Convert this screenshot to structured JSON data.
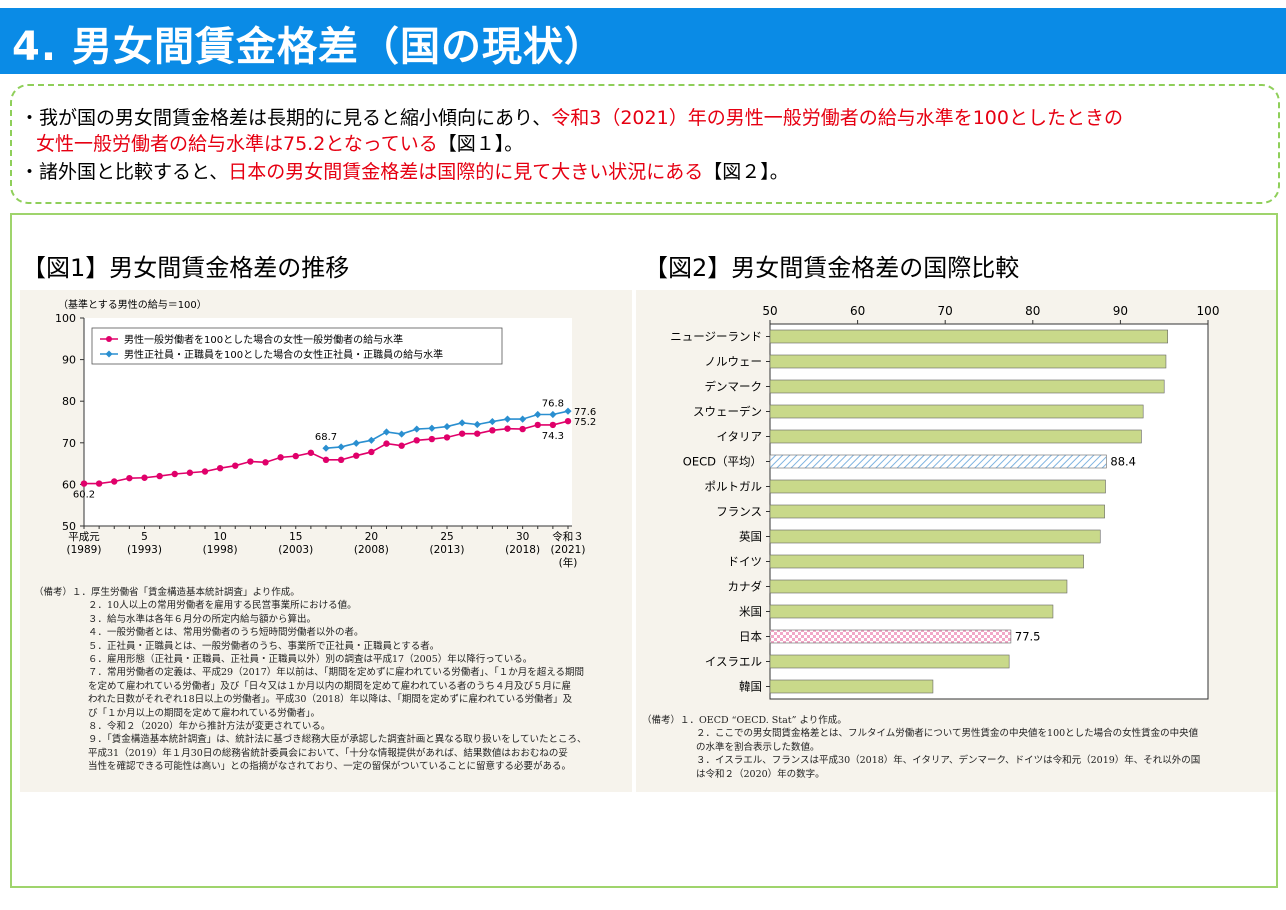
{
  "header": {
    "title": "4. 男女間賃金格差（国の現状）"
  },
  "summary": {
    "line1_a": "・我が国の男女間賃金格差は長期的に見ると縮小傾向にあり、",
    "line1_b": "令和3（2021）年の男性一般労働者の給与水準を100としたときの",
    "line2_a": "女性一般労働者の給与水準は75.2となっている",
    "line2_b": "【図１】。",
    "line3_a": "・諸外国と比較すると、",
    "line3_b": "日本の男女間賃金格差は国際的に見て大きい状況にある",
    "line3_c": "【図２】。"
  },
  "fig1": {
    "heading": "【図1】男女間賃金格差の推移",
    "notes": [
      "（備考）１．厚生労働省「賃金構造基本統計調査」より作成。",
      "２．10人以上の常用労働者を雇用する民営事業所における値。",
      "３．給与水準は各年６月分の所定内給与額から算出。",
      "４．一般労働者とは、常用労働者のうち短時間労働者以外の者。",
      "５．正社員・正職員とは、一般労働者のうち、事業所で正社員・正職員とする者。",
      "６．雇用形態（正社員・正職員、正社員・正職員以外）別の調査は平成17（2005）年以降行っている。",
      "７．常用労働者の定義は、平成29（2017）年以前は、「期間を定めずに雇われている労働者」、「１か月を超える期間",
      "を定めて雇われている労働者」及び「日々又は１か月以内の期間を定めて雇われている者のうち４月及び５月に雇",
      "われた日数がそれぞれ18日以上の労働者」。平成30（2018）年以降は、「期間を定めずに雇われている労働者」及",
      "び「１か月以上の期間を定めて雇われている労働者」。",
      "８．令和２（2020）年から推計方法が変更されている。",
      "９．「賃金構造基本統計調査」は、統計法に基づき総務大臣が承認した調査計画と異なる取り扱いをしていたところ、",
      "平成31（2019）年１月30日の総務省統計委員会において、「十分な情報提供があれば、結果数値はおおむねの妥",
      "当性を確認できる可能性は高い」との指摘がなされており、一定の留保がついていることに留意する必要がある。"
    ]
  },
  "fig2": {
    "heading": "【図2】男女間賃金格差の国際比較",
    "notes": [
      "（備考）１．OECD “OECD. Stat” より作成。",
      "２．ここでの男女間賃金格差とは、フルタイム労働者について男性賃金の中央値を100とした場合の女性賃金の中央値",
      "の水準を割合表示した数値。",
      "３．イスラエル、フランスは平成30（2018）年、イタリア、デンマーク、ドイツは令和元（2019）年、それ以外の国",
      "は令和２（2020）年の数字。"
    ]
  },
  "colors": {
    "title_bg": "#0a8be6",
    "accent_red": "#e60012",
    "series1": "#e0006a",
    "series2": "#2a8fd0",
    "bar": "#c9d98a",
    "bar_oecd": "#7fb3e0",
    "bar_japan": "#f2a8c8"
  },
  "chart_data": [
    {
      "type": "line",
      "ylabel": "（基準とする男性の給与＝100）",
      "ylim": [
        50,
        100
      ],
      "yticks": [
        50,
        60,
        70,
        80,
        90,
        100
      ],
      "xticks": [
        {
          "x": 1989,
          "l1": "平成元",
          "l2": "(1989)"
        },
        {
          "x": 1993,
          "l1": "5",
          "l2": "(1993)"
        },
        {
          "x": 1998,
          "l1": "10",
          "l2": "(1998)"
        },
        {
          "x": 2003,
          "l1": "15",
          "l2": "(2003)"
        },
        {
          "x": 2008,
          "l1": "20",
          "l2": "(2008)"
        },
        {
          "x": 2013,
          "l1": "25",
          "l2": "(2013)"
        },
        {
          "x": 2018,
          "l1": "30",
          "l2": "(2018)"
        },
        {
          "x": 2021,
          "l1": "令和３",
          "l2": "(2021)",
          "l3": "(年)"
        }
      ],
      "series": [
        {
          "name": "男性一般労働者を100とした場合の女性一般労働者の給与水準",
          "x": [
            1989,
            1990,
            1991,
            1992,
            1993,
            1994,
            1995,
            1996,
            1997,
            1998,
            1999,
            2000,
            2001,
            2002,
            2003,
            2004,
            2005,
            2006,
            2007,
            2008,
            2009,
            2010,
            2011,
            2012,
            2013,
            2014,
            2015,
            2016,
            2017,
            2018,
            2019,
            2020,
            2021
          ],
          "values": [
            60.2,
            60.2,
            60.7,
            61.5,
            61.6,
            62.0,
            62.5,
            62.8,
            63.1,
            63.9,
            64.5,
            65.5,
            65.3,
            66.5,
            66.8,
            67.6,
            65.9,
            65.9,
            66.9,
            67.8,
            69.8,
            69.3,
            70.6,
            70.9,
            71.3,
            72.2,
            72.2,
            73.0,
            73.4,
            73.3,
            74.3,
            74.3,
            75.2
          ]
        },
        {
          "name": "男性正社員・正職員を100とした場合の女性正社員・正職員の給与水準",
          "x": [
            2005,
            2006,
            2007,
            2008,
            2009,
            2010,
            2011,
            2012,
            2013,
            2014,
            2015,
            2016,
            2017,
            2018,
            2019,
            2020,
            2021
          ],
          "values": [
            68.7,
            69.0,
            69.9,
            70.6,
            72.6,
            72.1,
            73.3,
            73.5,
            73.9,
            74.8,
            74.4,
            75.1,
            75.7,
            75.7,
            76.8,
            76.8,
            77.6
          ]
        }
      ],
      "labels": [
        {
          "s": 0,
          "i": 0,
          "text": "60.2",
          "pos": "below"
        },
        {
          "s": 1,
          "i": 0,
          "text": "68.7",
          "pos": "above"
        },
        {
          "s": 0,
          "i": 31,
          "text": "74.3",
          "pos": "below"
        },
        {
          "s": 1,
          "i": 15,
          "text": "76.8",
          "pos": "above"
        },
        {
          "s": 1,
          "i": 16,
          "text": "77.6",
          "pos": "right"
        },
        {
          "s": 0,
          "i": 32,
          "text": "75.2",
          "pos": "right"
        }
      ]
    },
    {
      "type": "bar",
      "orientation": "horizontal",
      "xlim": [
        50,
        100
      ],
      "xticks": [
        50,
        60,
        70,
        80,
        90,
        100
      ],
      "categories": [
        "ニュージーランド",
        "ノルウェー",
        "デンマーク",
        "スウェーデン",
        "イタリア",
        "OECD（平均）",
        "ポルトガル",
        "フランス",
        "英国",
        "ドイツ",
        "カナダ",
        "米国",
        "日本",
        "イスラエル",
        "韓国"
      ],
      "values": [
        95.4,
        95.2,
        95.0,
        92.6,
        92.4,
        88.4,
        88.3,
        88.2,
        87.7,
        85.8,
        83.9,
        82.3,
        77.5,
        77.3,
        68.6
      ],
      "data_labels": {
        "OECD（平均）": "88.4",
        "日本": "77.5"
      }
    }
  ]
}
